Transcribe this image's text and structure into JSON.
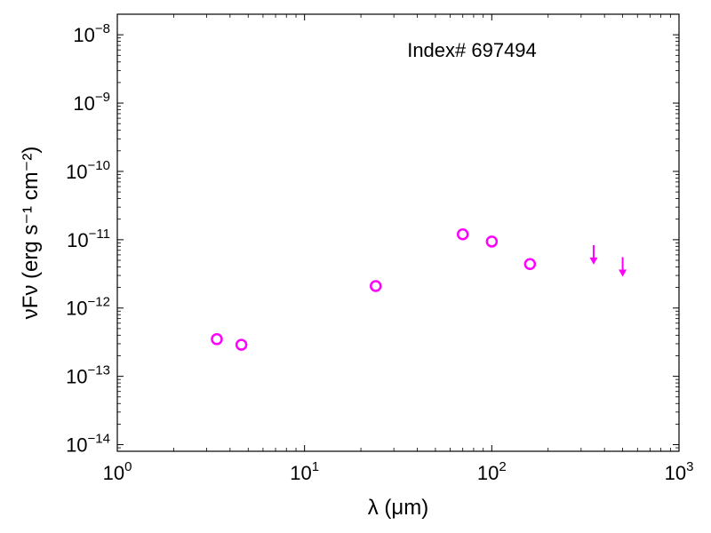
{
  "chart_data": {
    "type": "scatter",
    "annotation": "Index# 697494",
    "xlabel": "λ (μm)",
    "ylabel": "νFν (erg s⁻¹ cm⁻²)",
    "xscale": "log",
    "yscale": "log",
    "xlim": [
      1,
      1000
    ],
    "ylim": [
      8e-15,
      2e-08
    ],
    "x_ticks": [
      {
        "value": 1,
        "base": "10",
        "exp": "0"
      },
      {
        "value": 10,
        "base": "10",
        "exp": "1"
      },
      {
        "value": 100,
        "base": "10",
        "exp": "2"
      },
      {
        "value": 1000,
        "base": "10",
        "exp": "3"
      }
    ],
    "y_ticks": [
      {
        "value": 1e-14,
        "base": "10",
        "exp": "−14"
      },
      {
        "value": 1e-13,
        "base": "10",
        "exp": "−13"
      },
      {
        "value": 1e-12,
        "base": "10",
        "exp": "−12"
      },
      {
        "value": 1e-11,
        "base": "10",
        "exp": "−11"
      },
      {
        "value": 1e-10,
        "base": "10",
        "exp": "−10"
      },
      {
        "value": 1e-09,
        "base": "10",
        "exp": "−9"
      },
      {
        "value": 1e-08,
        "base": "10",
        "exp": "−8"
      }
    ],
    "color": "#ff00ff",
    "detections": [
      {
        "x": 3.4,
        "y": 3.5e-13
      },
      {
        "x": 4.6,
        "y": 2.9e-13
      },
      {
        "x": 24,
        "y": 2.1e-12
      },
      {
        "x": 70,
        "y": 1.2e-11
      },
      {
        "x": 100,
        "y": 9.4e-12
      },
      {
        "x": 160,
        "y": 4.4e-12
      }
    ],
    "upper_limits": [
      {
        "x": 350,
        "y": 6e-12
      },
      {
        "x": 500,
        "y": 4e-12
      }
    ],
    "grid": false,
    "legend": "none"
  }
}
